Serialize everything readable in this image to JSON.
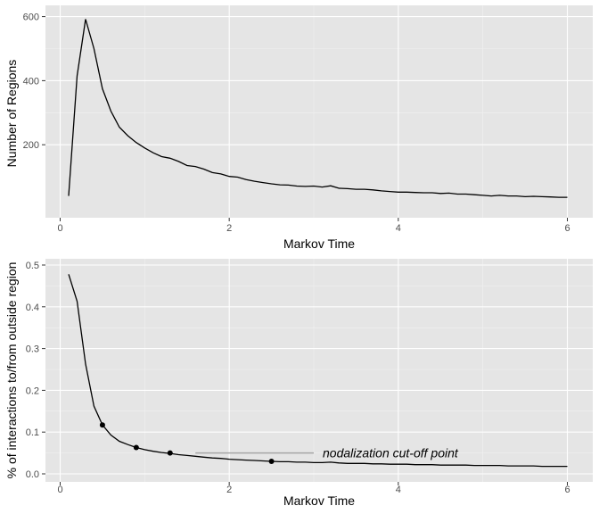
{
  "chart_data": [
    {
      "type": "line",
      "xlabel": "Markov Time",
      "ylabel": "Number of Regions",
      "xlim": [
        0,
        6
      ],
      "ylim": [
        0,
        610
      ],
      "xticks": [
        0,
        2,
        4,
        6
      ],
      "yticks": [
        200,
        400,
        600
      ],
      "grid": true,
      "x": [
        0.1,
        0.2,
        0.3,
        0.4,
        0.5,
        0.6,
        0.7,
        0.8,
        0.9,
        1.0,
        1.1,
        1.2,
        1.3,
        1.4,
        1.5,
        1.6,
        1.7,
        1.8,
        1.9,
        2.0,
        2.1,
        2.2,
        2.3,
        2.4,
        2.5,
        2.6,
        2.7,
        2.8,
        2.9,
        3.0,
        3.1,
        3.2,
        3.3,
        3.4,
        3.5,
        3.6,
        3.7,
        3.8,
        3.9,
        4.0,
        4.1,
        4.2,
        4.3,
        4.4,
        4.5,
        4.6,
        4.7,
        4.8,
        4.9,
        5.0,
        5.1,
        5.2,
        5.3,
        5.4,
        5.5,
        5.6,
        5.7,
        5.8,
        5.9,
        6.0
      ],
      "y": [
        40,
        415,
        592,
        500,
        375,
        305,
        255,
        228,
        207,
        190,
        175,
        163,
        158,
        148,
        135,
        132,
        124,
        113,
        109,
        101,
        99,
        91,
        86,
        82,
        78,
        75,
        74,
        71,
        70,
        71,
        68,
        72,
        64,
        63,
        61,
        61,
        59,
        56,
        54,
        52,
        52,
        51,
        50,
        50,
        48,
        49,
        46,
        46,
        44,
        42,
        40,
        42,
        40,
        40,
        38,
        39,
        38,
        37,
        36,
        36
      ]
    },
    {
      "type": "line",
      "xlabel": "Markov Time",
      "ylabel": "% of interactions to/from outside region",
      "xlim": [
        0,
        6
      ],
      "ylim": [
        0,
        0.5
      ],
      "xticks": [
        0,
        2,
        4,
        6
      ],
      "yticks": [
        0.0,
        0.1,
        0.2,
        0.3,
        0.4,
        0.5
      ],
      "ytick_labels": [
        "0.0",
        "0.1",
        "0.2",
        "0.3",
        "0.4",
        "0.5"
      ],
      "grid": true,
      "x": [
        0.1,
        0.2,
        0.3,
        0.4,
        0.5,
        0.6,
        0.7,
        0.8,
        0.9,
        1.0,
        1.1,
        1.2,
        1.3,
        1.4,
        1.5,
        1.6,
        1.7,
        1.8,
        1.9,
        2.0,
        2.1,
        2.2,
        2.3,
        2.4,
        2.5,
        2.6,
        2.7,
        2.8,
        2.9,
        3.0,
        3.1,
        3.2,
        3.3,
        3.4,
        3.5,
        3.6,
        3.7,
        3.8,
        3.9,
        4.0,
        4.1,
        4.2,
        4.3,
        4.4,
        4.5,
        4.6,
        4.7,
        4.8,
        4.9,
        5.0,
        5.1,
        5.2,
        5.3,
        5.4,
        5.5,
        5.6,
        5.7,
        5.8,
        5.9,
        6.0
      ],
      "y": [
        0.478,
        0.413,
        0.263,
        0.162,
        0.117,
        0.093,
        0.078,
        0.07,
        0.063,
        0.058,
        0.054,
        0.051,
        0.049,
        0.046,
        0.044,
        0.042,
        0.04,
        0.038,
        0.037,
        0.035,
        0.034,
        0.033,
        0.032,
        0.031,
        0.03,
        0.029,
        0.029,
        0.028,
        0.028,
        0.027,
        0.027,
        0.028,
        0.026,
        0.025,
        0.025,
        0.025,
        0.024,
        0.024,
        0.023,
        0.023,
        0.023,
        0.022,
        0.022,
        0.022,
        0.021,
        0.021,
        0.021,
        0.021,
        0.02,
        0.02,
        0.02,
        0.02,
        0.019,
        0.019,
        0.019,
        0.019,
        0.018,
        0.018,
        0.018,
        0.018
      ],
      "points": [
        {
          "x": 0.5,
          "y": 0.117
        },
        {
          "x": 0.9,
          "y": 0.063
        },
        {
          "x": 1.3,
          "y": 0.05
        },
        {
          "x": 2.5,
          "y": 0.03
        }
      ],
      "annotations": [
        {
          "text": "nodalization cut-off point",
          "x_start": 1.6,
          "x_end": 3.0,
          "y": 0.05,
          "line_color": "#a6a6a6"
        }
      ]
    }
  ]
}
